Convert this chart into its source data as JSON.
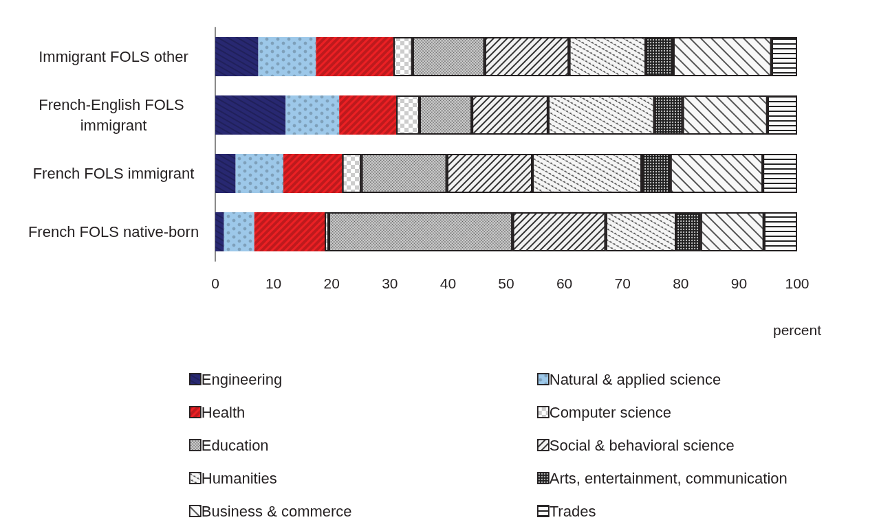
{
  "chart_data": {
    "type": "bar",
    "orientation": "horizontal",
    "stacked": true,
    "xlabel": "percent",
    "categories": [
      "Immigrant FOLS other",
      "French-English FOLS immigrant",
      "French FOLS immigrant",
      "French FOLS native-born"
    ],
    "series": [
      {
        "name": "Engineering",
        "color": "#282871",
        "values": [
          7.4,
          12.1,
          3.5,
          1.5
        ]
      },
      {
        "name": "Natural & applied science",
        "color": "#9dc8e9",
        "values": [
          9.9,
          9.2,
          8.2,
          5.2
        ]
      },
      {
        "name": "Health",
        "color": "#ec2024",
        "values": [
          13.3,
          9.8,
          10.1,
          12.1
        ]
      },
      {
        "name": "Computer science",
        "color": "#ffffff",
        "values": [
          3.3,
          4.0,
          3.3,
          0.7
        ]
      },
      {
        "name": "Education",
        "color": "#d9d9d9",
        "values": [
          12.4,
          9.0,
          14.7,
          31.6
        ]
      },
      {
        "name": "Social & behavioral science",
        "color": "#f2f2f2",
        "values": [
          14.5,
          13.1,
          14.7,
          16.0
        ]
      },
      {
        "name": "Humanities",
        "color": "#f5f5f5",
        "values": [
          13.2,
          18.3,
          18.8,
          12.1
        ]
      },
      {
        "name": "Arts, entertainment, communication",
        "color": "#222222",
        "values": [
          4.7,
          4.8,
          4.9,
          4.2
        ]
      },
      {
        "name": "Business & commerce",
        "color": "#f8f8f8",
        "values": [
          16.9,
          14.6,
          15.9,
          10.9
        ]
      },
      {
        "name": "Trades",
        "color": "#fafafa",
        "values": [
          4.4,
          5.1,
          5.9,
          5.7
        ]
      }
    ],
    "xlim": [
      0,
      100
    ],
    "xticks": [
      0,
      10,
      20,
      30,
      40,
      50,
      60,
      70,
      80,
      90,
      100
    ],
    "grid": false,
    "legend": "bottom"
  }
}
